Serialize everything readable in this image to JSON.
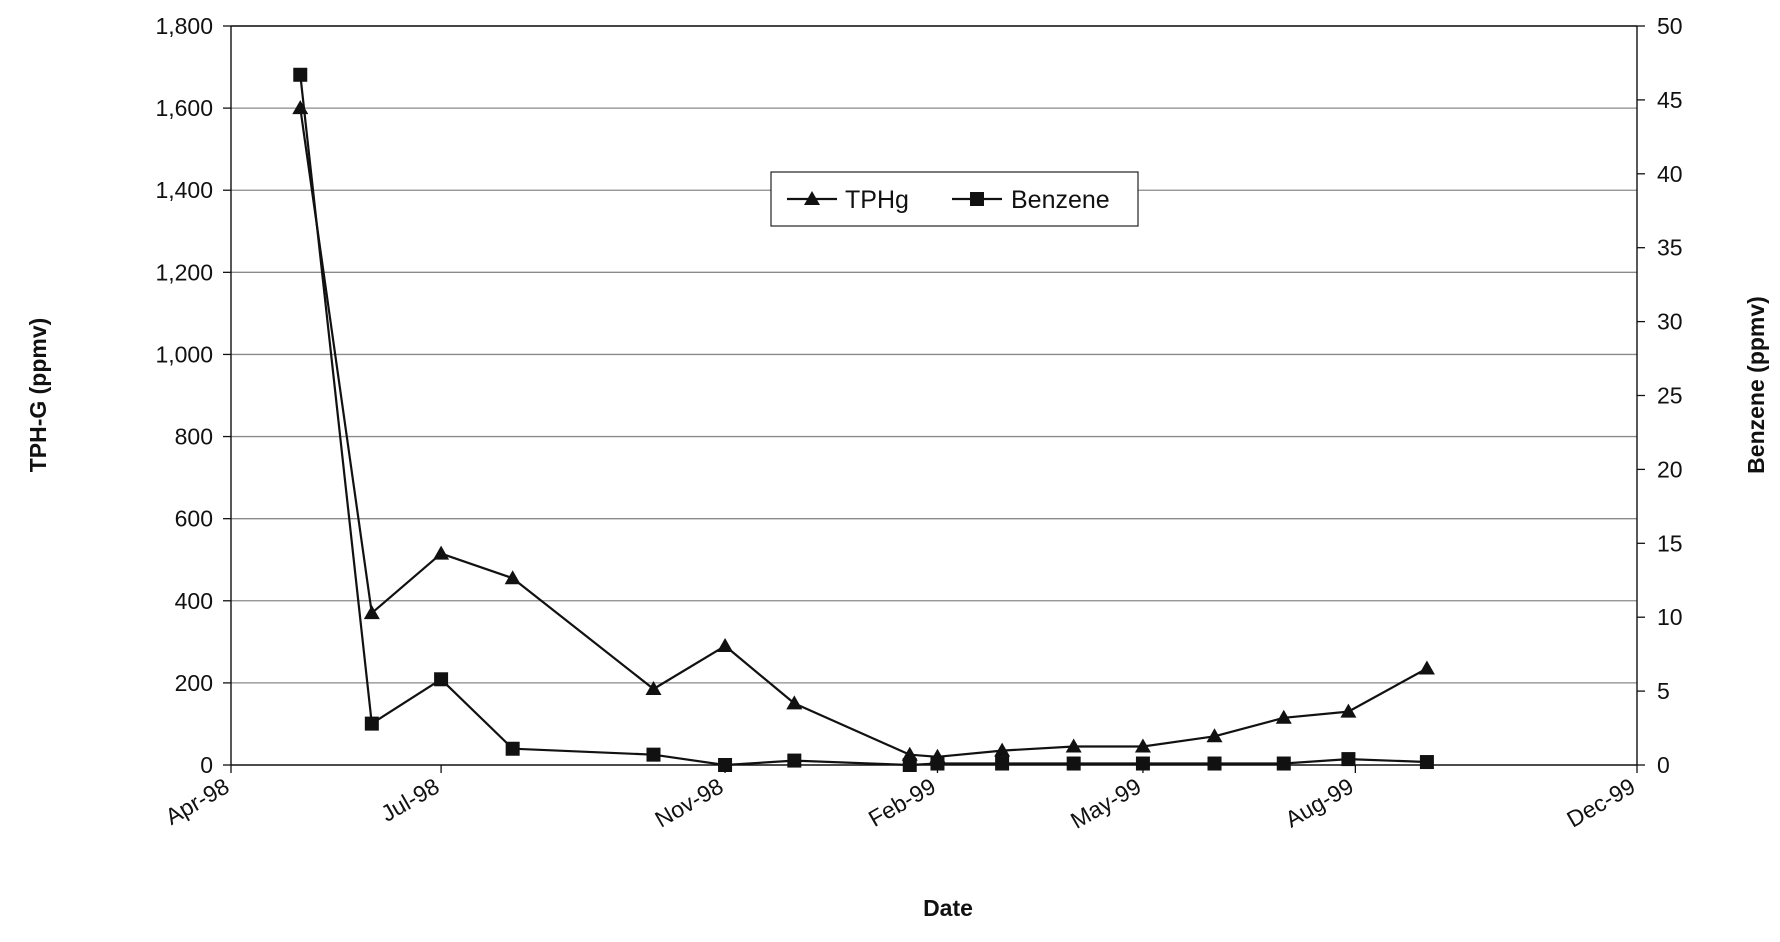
{
  "chart_data": {
    "type": "line",
    "xlabel": "Date",
    "ylabel_left": "TPH-G (ppmv)",
    "ylabel_right": "Benzene (ppmv)",
    "x_ticks": [
      "Apr-98",
      "Jul-98",
      "Nov-98",
      "Feb-99",
      "May-99",
      "Aug-99",
      "Dec-99"
    ],
    "x_tick_values": [
      "1998-04-01",
      "1998-07-01",
      "1998-11-01",
      "1999-02-01",
      "1999-05-01",
      "1999-08-01",
      "1999-12-01"
    ],
    "xlim": [
      "1998-04-01",
      "1999-12-01"
    ],
    "ylim_left": [
      0,
      1800
    ],
    "ylim_right": [
      0,
      50
    ],
    "left_ticks": [
      "0",
      "200",
      "400",
      "600",
      "800",
      "1,000",
      "1,200",
      "1,400",
      "1,600",
      "1,800"
    ],
    "right_ticks": [
      "0",
      "5",
      "10",
      "15",
      "20",
      "25",
      "30",
      "35",
      "40",
      "45",
      "50"
    ],
    "grid": true,
    "legend_position": "upper-center",
    "series": [
      {
        "name": "TPHg",
        "axis": "left",
        "marker": "triangle",
        "color": "#111111",
        "x": [
          "1998-05-01",
          "1998-06-01",
          "1998-07-01",
          "1998-08-01",
          "1998-10-01",
          "1998-11-01",
          "1998-12-01",
          "1999-01-20",
          "1999-02-01",
          "1999-03-01",
          "1999-04-01",
          "1999-05-01",
          "1999-06-01",
          "1999-07-01",
          "1999-07-29",
          "1999-09-01"
        ],
        "y": [
          1600,
          370,
          515,
          455,
          185,
          290,
          150,
          25,
          20,
          35,
          45,
          45,
          70,
          115,
          130,
          235
        ]
      },
      {
        "name": "Benzene",
        "axis": "right",
        "marker": "square",
        "color": "#111111",
        "x": [
          "1998-05-01",
          "1998-06-01",
          "1998-07-01",
          "1998-08-01",
          "1998-10-01",
          "1998-11-01",
          "1998-12-01",
          "1999-01-20",
          "1999-02-01",
          "1999-03-01",
          "1999-04-01",
          "1999-05-01",
          "1999-06-01",
          "1999-07-01",
          "1999-07-29",
          "1999-09-01"
        ],
        "y": [
          46.7,
          2.8,
          5.8,
          1.1,
          0.7,
          0.0,
          0.3,
          0.0,
          0.1,
          0.1,
          0.1,
          0.1,
          0.1,
          0.1,
          0.4,
          0.2
        ]
      }
    ]
  }
}
